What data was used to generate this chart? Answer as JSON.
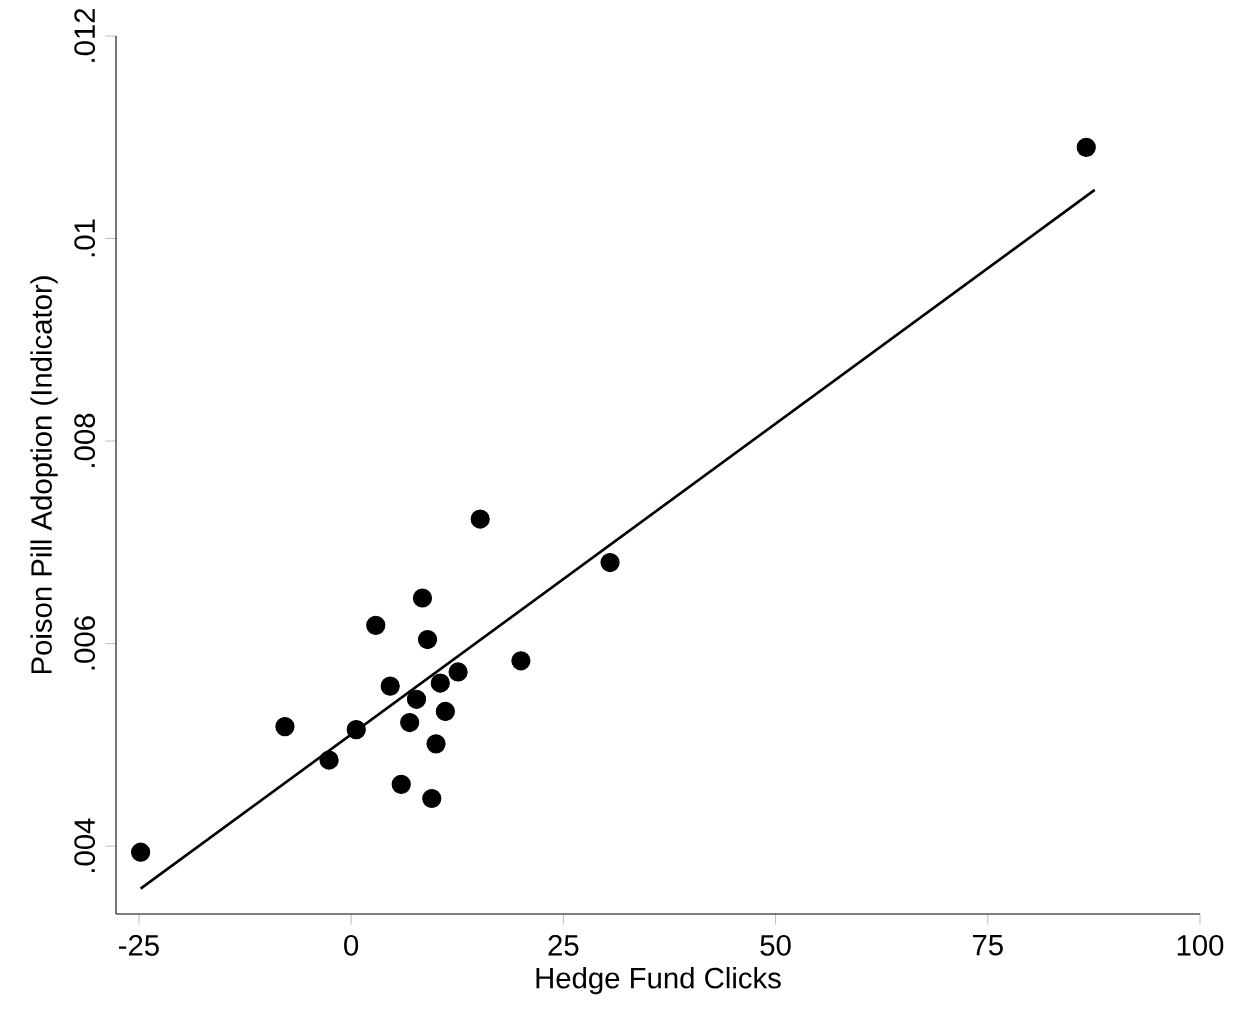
{
  "chart_data": {
    "type": "scatter",
    "xlabel": "Hedge Fund Clicks",
    "ylabel": "Poison Pill Adoption (Indicator)",
    "xlim": [
      -27.7,
      100
    ],
    "ylim": [
      0.00333,
      0.012
    ],
    "xticks": [
      -25,
      0,
      25,
      50,
      75,
      100
    ],
    "yticks": [
      {
        "value": 0.004,
        "label": ".004"
      },
      {
        "value": 0.006,
        "label": ".006"
      },
      {
        "value": 0.008,
        "label": ".008"
      },
      {
        "value": 0.01,
        "label": ".01"
      },
      {
        "value": 0.012,
        "label": ".012"
      }
    ],
    "grid": false,
    "series": [
      {
        "marker": "circle",
        "color": "#000000",
        "x": [
          -24.8,
          86.6,
          15.2,
          30.5,
          8.4,
          2.9,
          9.0,
          20.0,
          12.6,
          4.6,
          10.5,
          7.7,
          11.1,
          6.9,
          -7.8,
          0.6,
          10.0,
          -2.6,
          5.9,
          9.5
        ],
        "values": [
          0.00394,
          0.0109,
          0.00723,
          0.0068,
          0.00645,
          0.00618,
          0.00604,
          0.00583,
          0.00572,
          0.00558,
          0.00561,
          0.00545,
          0.00533,
          0.00522,
          0.00518,
          0.00515,
          0.00501,
          0.00485,
          0.00461,
          0.00447
        ]
      },
      {
        "type": "line",
        "marker": "none",
        "color": "#000000",
        "x": [
          -24.8,
          87.6
        ],
        "values": [
          0.00358,
          0.01048
        ]
      }
    ]
  }
}
